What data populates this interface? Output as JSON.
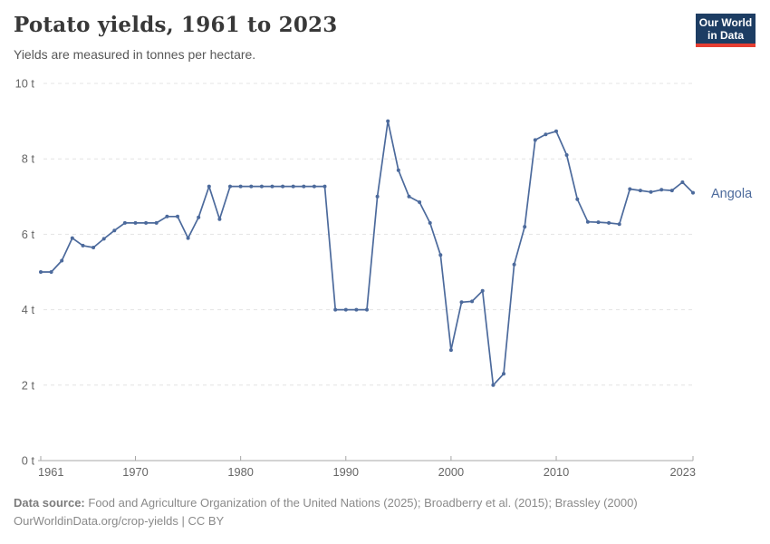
{
  "header": {
    "title": "Potato yields, 1961 to 2023",
    "subtitle": "Yields are measured in tonnes per hectare.",
    "logo": {
      "line1": "Our World",
      "line2": "in Data"
    }
  },
  "footer": {
    "source_label": "Data source:",
    "source_text": "Food and Agriculture Organization of the United Nations (2025); Broadberry et al. (2015); Brassley (2000)",
    "link": "OurWorldinData.org/crop-yields",
    "separator": "|",
    "license": "CC BY"
  },
  "colors": {
    "series": "#4C6A9C",
    "logo_bg": "#1d3d63",
    "logo_accent": "#e63e32",
    "grid": "#e4e4e4",
    "axis": "#a7a7a7",
    "tick_label": "#666666"
  },
  "chart_data": {
    "type": "line",
    "title": "Potato yields, 1961 to 2023",
    "subtitle": "Yields are measured in tonnes per hectare.",
    "xlabel": "",
    "ylabel": "",
    "unit": "tonnes per hectare",
    "xlim": [
      1961,
      2023
    ],
    "ylim": [
      0,
      10
    ],
    "grid": "horizontal-dashed",
    "legend": "inline-end-label",
    "xticks": [
      "1961",
      "1970",
      "1980",
      "1990",
      "2000",
      "2010",
      "2023"
    ],
    "ytick_values": [
      0,
      2,
      4,
      6,
      8,
      10
    ],
    "ytick_labels": [
      "0 t",
      "2 t",
      "4 t",
      "6 t",
      "8 t",
      "10 t"
    ],
    "series": [
      {
        "name": "Angola",
        "color": "#4C6A9C",
        "x": [
          1961,
          1962,
          1963,
          1964,
          1965,
          1966,
          1967,
          1968,
          1969,
          1970,
          1971,
          1972,
          1973,
          1974,
          1975,
          1976,
          1977,
          1978,
          1979,
          1980,
          1981,
          1982,
          1983,
          1984,
          1985,
          1986,
          1987,
          1988,
          1989,
          1990,
          1991,
          1992,
          1993,
          1994,
          1995,
          1996,
          1997,
          1998,
          1999,
          2000,
          2001,
          2002,
          2003,
          2004,
          2005,
          2006,
          2007,
          2008,
          2009,
          2010,
          2011,
          2012,
          2013,
          2014,
          2015,
          2016,
          2017,
          2018,
          2019,
          2020,
          2021,
          2022,
          2023
        ],
        "values": [
          5.0,
          5.0,
          5.3,
          5.9,
          5.7,
          5.65,
          5.88,
          6.1,
          6.3,
          6.3,
          6.3,
          6.3,
          6.47,
          6.47,
          5.9,
          6.45,
          7.27,
          6.4,
          7.27,
          7.27,
          7.27,
          7.27,
          7.27,
          7.27,
          7.27,
          7.27,
          7.27,
          7.27,
          4.0,
          4.0,
          4.0,
          4.0,
          7.0,
          9.0,
          7.7,
          7.0,
          6.85,
          6.3,
          5.45,
          2.93,
          4.2,
          4.22,
          4.5,
          2.0,
          2.3,
          5.2,
          6.2,
          8.5,
          8.65,
          8.73,
          8.1,
          6.93,
          6.33,
          6.32,
          6.3,
          6.27,
          7.2,
          7.16,
          7.12,
          7.18,
          7.16,
          7.38,
          7.1
        ]
      }
    ]
  }
}
